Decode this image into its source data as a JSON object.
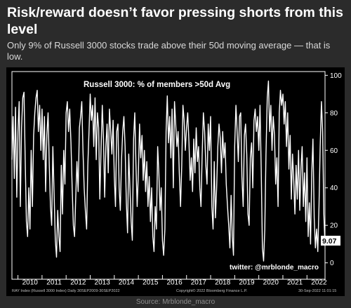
{
  "post": {
    "headline": "Risk/reward doesn’t favor pressing shorts from this level",
    "subheadline": "Only 9% of Russell 3000 stocks trade above their 50d moving average — that is low.",
    "source": "Source: Mrblonde_macro"
  },
  "chart_data": {
    "type": "line",
    "title": "Russell 3000: % of members >50d Avg",
    "watermark": "twitter: @mrblonde_macro",
    "footer_left": "RAY Index (Russell 3000 Index)  Daily 30SEP2009-30SEP2022",
    "footer_center": "Copyright© 2022 Bloomberg Finance L.P.",
    "footer_right": "30-Sep-2022 11:01:15",
    "last_value_label": "9.07",
    "ylim": [
      -5,
      102
    ],
    "yticks": [
      0,
      20,
      40,
      60,
      80,
      100
    ],
    "xlim": [
      2009.75,
      2022.75
    ],
    "xticks": [
      "2010",
      "2011",
      "2012",
      "2013",
      "2014",
      "2015",
      "2016",
      "2017",
      "2018",
      "2019",
      "2020",
      "2021",
      "2022"
    ],
    "grid": false,
    "colors": {
      "background": "#000000",
      "line": "#ffffff",
      "text": "#ffffff",
      "last_label_bg": "#ffffff",
      "last_label_text": "#000000"
    },
    "series": [
      {
        "values": [
          [
            2009.75,
            55
          ],
          [
            2009.8,
            78
          ],
          [
            2009.85,
            45
          ],
          [
            2009.9,
            83
          ],
          [
            2009.95,
            35
          ],
          [
            2010.0,
            70
          ],
          [
            2010.05,
            86
          ],
          [
            2010.1,
            30
          ],
          [
            2010.15,
            72
          ],
          [
            2010.2,
            88
          ],
          [
            2010.25,
            91
          ],
          [
            2010.3,
            55
          ],
          [
            2010.35,
            22
          ],
          [
            2010.4,
            14
          ],
          [
            2010.45,
            40
          ],
          [
            2010.5,
            18
          ],
          [
            2010.55,
            60
          ],
          [
            2010.6,
            30
          ],
          [
            2010.65,
            68
          ],
          [
            2010.7,
            80
          ],
          [
            2010.75,
            88
          ],
          [
            2010.8,
            92
          ],
          [
            2010.85,
            70
          ],
          [
            2010.9,
            84
          ],
          [
            2010.95,
            60
          ],
          [
            2011.0,
            82
          ],
          [
            2011.05,
            55
          ],
          [
            2011.1,
            78
          ],
          [
            2011.15,
            38
          ],
          [
            2011.2,
            68
          ],
          [
            2011.25,
            80
          ],
          [
            2011.3,
            52
          ],
          [
            2011.35,
            30
          ],
          [
            2011.4,
            20
          ],
          [
            2011.45,
            62
          ],
          [
            2011.5,
            38
          ],
          [
            2011.55,
            12
          ],
          [
            2011.6,
            3
          ],
          [
            2011.65,
            28
          ],
          [
            2011.7,
            14
          ],
          [
            2011.75,
            6
          ],
          [
            2011.8,
            52
          ],
          [
            2011.85,
            26
          ],
          [
            2011.9,
            60
          ],
          [
            2011.95,
            42
          ],
          [
            2012.0,
            80
          ],
          [
            2012.05,
            86
          ],
          [
            2012.1,
            70
          ],
          [
            2012.15,
            82
          ],
          [
            2012.2,
            64
          ],
          [
            2012.25,
            40
          ],
          [
            2012.3,
            20
          ],
          [
            2012.35,
            14
          ],
          [
            2012.4,
            35
          ],
          [
            2012.45,
            54
          ],
          [
            2012.5,
            38
          ],
          [
            2012.55,
            72
          ],
          [
            2012.6,
            78
          ],
          [
            2012.65,
            86
          ],
          [
            2012.7,
            60
          ],
          [
            2012.75,
            40
          ],
          [
            2012.8,
            28
          ],
          [
            2012.85,
            18
          ],
          [
            2012.9,
            52
          ],
          [
            2012.95,
            70
          ],
          [
            2013.0,
            90
          ],
          [
            2013.05,
            76
          ],
          [
            2013.1,
            84
          ],
          [
            2013.15,
            62
          ],
          [
            2013.2,
            88
          ],
          [
            2013.25,
            55
          ],
          [
            2013.3,
            80
          ],
          [
            2013.35,
            72
          ],
          [
            2013.4,
            34
          ],
          [
            2013.45,
            60
          ],
          [
            2013.5,
            84
          ],
          [
            2013.55,
            66
          ],
          [
            2013.6,
            35
          ],
          [
            2013.65,
            62
          ],
          [
            2013.7,
            74
          ],
          [
            2013.75,
            48
          ],
          [
            2013.8,
            82
          ],
          [
            2013.85,
            70
          ],
          [
            2013.9,
            58
          ],
          [
            2013.95,
            76
          ],
          [
            2014.0,
            46
          ],
          [
            2014.05,
            30
          ],
          [
            2014.1,
            70
          ],
          [
            2014.15,
            74
          ],
          [
            2014.2,
            40
          ],
          [
            2014.25,
            28
          ],
          [
            2014.3,
            55
          ],
          [
            2014.35,
            70
          ],
          [
            2014.4,
            78
          ],
          [
            2014.45,
            62
          ],
          [
            2014.5,
            32
          ],
          [
            2014.55,
            16
          ],
          [
            2014.6,
            58
          ],
          [
            2014.65,
            40
          ],
          [
            2014.7,
            22
          ],
          [
            2014.75,
            12
          ],
          [
            2014.8,
            66
          ],
          [
            2014.85,
            80
          ],
          [
            2014.9,
            52
          ],
          [
            2014.95,
            30
          ],
          [
            2015.0,
            48
          ],
          [
            2015.05,
            74
          ],
          [
            2015.1,
            56
          ],
          [
            2015.15,
            68
          ],
          [
            2015.2,
            44
          ],
          [
            2015.25,
            60
          ],
          [
            2015.3,
            38
          ],
          [
            2015.35,
            54
          ],
          [
            2015.4,
            30
          ],
          [
            2015.45,
            46
          ],
          [
            2015.5,
            22
          ],
          [
            2015.55,
            40
          ],
          [
            2015.6,
            14
          ],
          [
            2015.65,
            6
          ],
          [
            2015.7,
            30
          ],
          [
            2015.75,
            18
          ],
          [
            2015.8,
            62
          ],
          [
            2015.85,
            48
          ],
          [
            2015.9,
            28
          ],
          [
            2015.95,
            40
          ],
          [
            2016.0,
            12
          ],
          [
            2016.05,
            4
          ],
          [
            2016.1,
            18
          ],
          [
            2016.15,
            70
          ],
          [
            2016.2,
            89
          ],
          [
            2016.25,
            64
          ],
          [
            2016.3,
            78
          ],
          [
            2016.35,
            56
          ],
          [
            2016.4,
            82
          ],
          [
            2016.45,
            40
          ],
          [
            2016.5,
            86
          ],
          [
            2016.55,
            74
          ],
          [
            2016.6,
            62
          ],
          [
            2016.65,
            70
          ],
          [
            2016.7,
            48
          ],
          [
            2016.75,
            30
          ],
          [
            2016.8,
            52
          ],
          [
            2016.85,
            84
          ],
          [
            2016.9,
            76
          ],
          [
            2016.95,
            60
          ],
          [
            2017.0,
            72
          ],
          [
            2017.05,
            80
          ],
          [
            2017.1,
            64
          ],
          [
            2017.15,
            44
          ],
          [
            2017.2,
            56
          ],
          [
            2017.25,
            38
          ],
          [
            2017.3,
            66
          ],
          [
            2017.35,
            48
          ],
          [
            2017.4,
            72
          ],
          [
            2017.45,
            54
          ],
          [
            2017.5,
            62
          ],
          [
            2017.55,
            40
          ],
          [
            2017.6,
            30
          ],
          [
            2017.65,
            58
          ],
          [
            2017.7,
            80
          ],
          [
            2017.75,
            70
          ],
          [
            2017.8,
            52
          ],
          [
            2017.85,
            42
          ],
          [
            2017.9,
            74
          ],
          [
            2017.95,
            60
          ],
          [
            2018.0,
            78
          ],
          [
            2018.05,
            30
          ],
          [
            2018.1,
            18
          ],
          [
            2018.15,
            54
          ],
          [
            2018.2,
            24
          ],
          [
            2018.25,
            40
          ],
          [
            2018.3,
            62
          ],
          [
            2018.35,
            74
          ],
          [
            2018.4,
            66
          ],
          [
            2018.45,
            48
          ],
          [
            2018.5,
            70
          ],
          [
            2018.55,
            56
          ],
          [
            2018.6,
            64
          ],
          [
            2018.65,
            42
          ],
          [
            2018.7,
            30
          ],
          [
            2018.75,
            20
          ],
          [
            2018.8,
            8
          ],
          [
            2018.85,
            36
          ],
          [
            2018.9,
            14
          ],
          [
            2018.95,
            4
          ],
          [
            2019.0,
            62
          ],
          [
            2019.05,
            84
          ],
          [
            2019.1,
            70
          ],
          [
            2019.15,
            54
          ],
          [
            2019.2,
            78
          ],
          [
            2019.25,
            80
          ],
          [
            2019.3,
            46
          ],
          [
            2019.35,
            30
          ],
          [
            2019.4,
            68
          ],
          [
            2019.45,
            74
          ],
          [
            2019.5,
            58
          ],
          [
            2019.55,
            26
          ],
          [
            2019.6,
            20
          ],
          [
            2019.65,
            56
          ],
          [
            2019.7,
            64
          ],
          [
            2019.75,
            40
          ],
          [
            2019.8,
            76
          ],
          [
            2019.85,
            82
          ],
          [
            2019.9,
            70
          ],
          [
            2019.95,
            78
          ],
          [
            2020.0,
            60
          ],
          [
            2020.05,
            84
          ],
          [
            2020.1,
            50
          ],
          [
            2020.15,
            8
          ],
          [
            2020.2,
            1
          ],
          [
            2020.25,
            18
          ],
          [
            2020.3,
            58
          ],
          [
            2020.35,
            88
          ],
          [
            2020.4,
            97
          ],
          [
            2020.45,
            70
          ],
          [
            2020.5,
            84
          ],
          [
            2020.55,
            60
          ],
          [
            2020.6,
            78
          ],
          [
            2020.65,
            68
          ],
          [
            2020.7,
            42
          ],
          [
            2020.75,
            56
          ],
          [
            2020.8,
            30
          ],
          [
            2020.85,
            80
          ],
          [
            2020.9,
            92
          ],
          [
            2020.95,
            84
          ],
          [
            2021.0,
            90
          ],
          [
            2021.05,
            74
          ],
          [
            2021.1,
            86
          ],
          [
            2021.15,
            62
          ],
          [
            2021.2,
            80
          ],
          [
            2021.25,
            50
          ],
          [
            2021.3,
            68
          ],
          [
            2021.35,
            34
          ],
          [
            2021.4,
            58
          ],
          [
            2021.45,
            44
          ],
          [
            2021.5,
            26
          ],
          [
            2021.55,
            52
          ],
          [
            2021.6,
            34
          ],
          [
            2021.65,
            60
          ],
          [
            2021.7,
            28
          ],
          [
            2021.75,
            50
          ],
          [
            2021.8,
            62
          ],
          [
            2021.85,
            30
          ],
          [
            2021.9,
            48
          ],
          [
            2021.95,
            22
          ],
          [
            2022.0,
            56
          ],
          [
            2022.05,
            14
          ],
          [
            2022.1,
            32
          ],
          [
            2022.15,
            10
          ],
          [
            2022.2,
            48
          ],
          [
            2022.25,
            66
          ],
          [
            2022.3,
            24
          ],
          [
            2022.35,
            8
          ],
          [
            2022.4,
            18
          ],
          [
            2022.45,
            6
          ],
          [
            2022.5,
            30
          ],
          [
            2022.55,
            62
          ],
          [
            2022.6,
            86
          ],
          [
            2022.65,
            70
          ],
          [
            2022.7,
            26
          ],
          [
            2022.75,
            9.07
          ]
        ]
      }
    ]
  }
}
